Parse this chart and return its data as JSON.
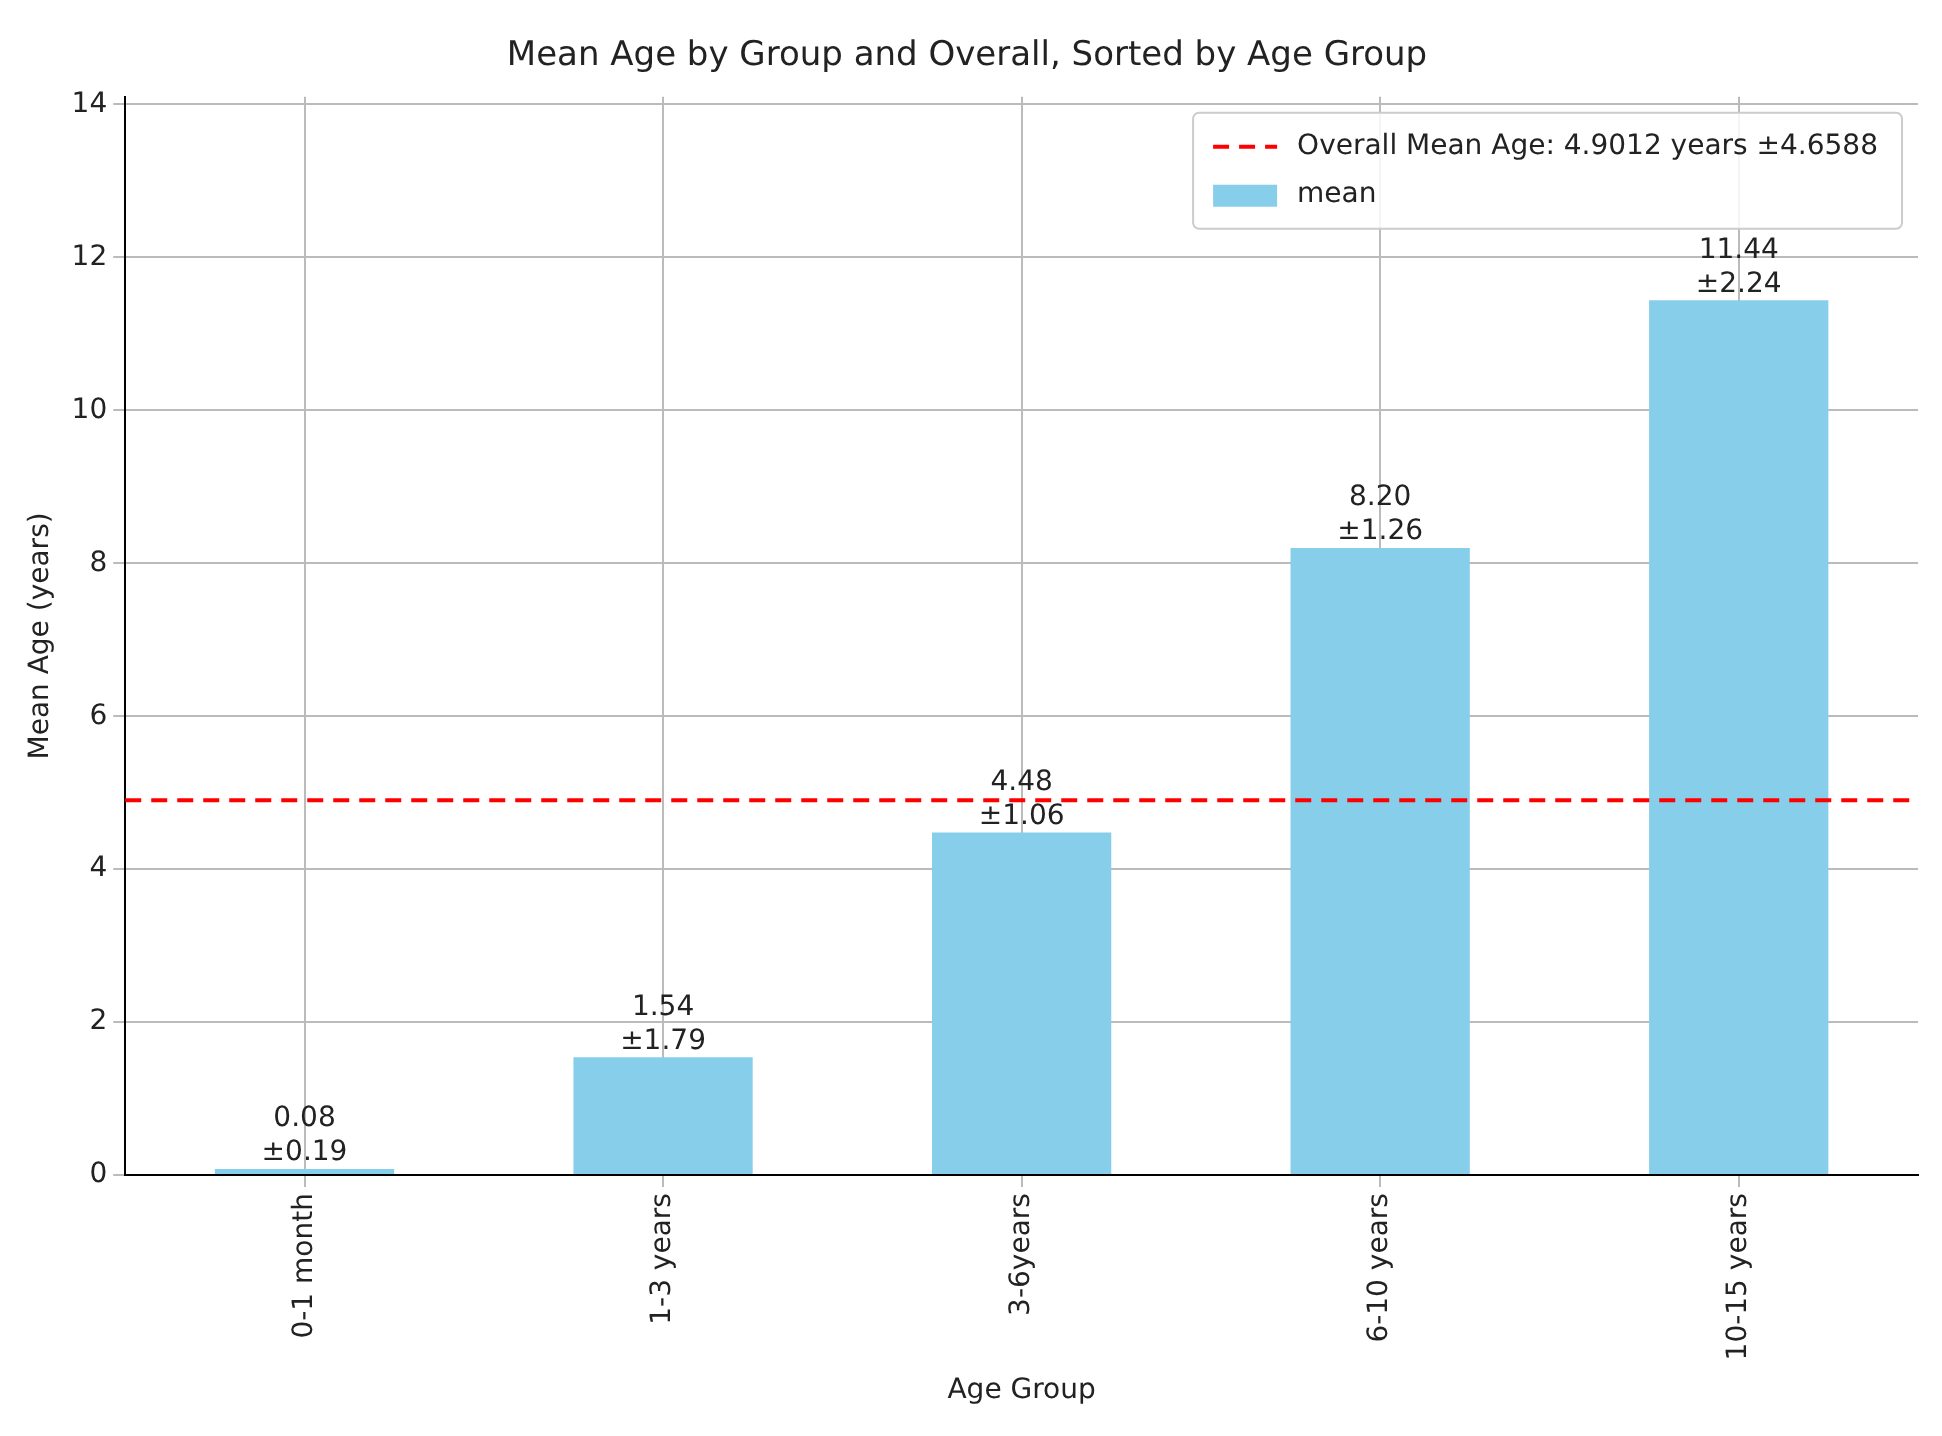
{
  "chart_data": {
    "type": "bar",
    "title": "Mean Age by Group and Overall, Sorted by Age Group",
    "xlabel": "Age Group",
    "ylabel": "Mean Age (years)",
    "categories": [
      "0-1 month",
      "1-3 years",
      "3-6years",
      "6-10 years",
      "10-15 years"
    ],
    "series": [
      {
        "name": "mean",
        "color": "#87ceeb",
        "values": [
          0.08,
          1.54,
          4.48,
          8.2,
          11.44
        ],
        "value_labels": [
          "0.08\n±0.19",
          "1.54\n±1.79",
          "4.48\n±1.06",
          "8.20\n±1.26",
          "11.44\n±2.24"
        ]
      }
    ],
    "ref_lines": [
      {
        "axis": "y",
        "value": 4.9012,
        "label": "Overall Mean Age: 4.9012 years ±4.6588",
        "color": "#ff0000",
        "line_style": "dashed"
      }
    ],
    "ylim": [
      0,
      14.1
    ],
    "yticks": [
      0,
      2,
      4,
      6,
      8,
      10,
      12,
      14
    ],
    "grid": true,
    "legend": "top right"
  }
}
